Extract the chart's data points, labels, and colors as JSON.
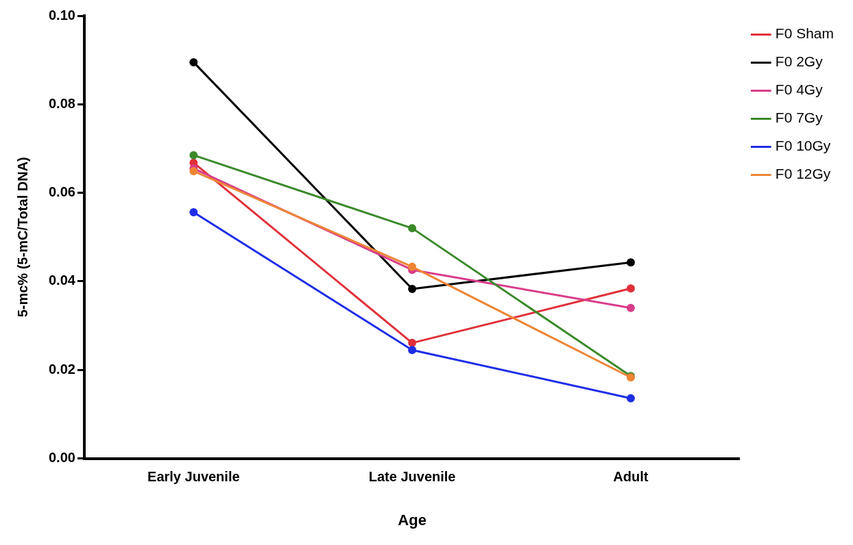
{
  "chart_data": {
    "type": "line",
    "xlabel": "Age",
    "ylabel": "5-mc% (5-mC/Total DNA)",
    "categories": [
      "Early Juvenile",
      "Late Juvenile",
      "Adult"
    ],
    "series": [
      {
        "name": "F0 Sham",
        "color": "#e0303a",
        "values": [
          0.0668,
          0.0261,
          0.0384
        ]
      },
      {
        "name": "F0 2Gy",
        "color": "#000000",
        "values": [
          0.0895,
          0.0383,
          0.0443
        ]
      },
      {
        "name": "F0 4Gy",
        "color": "#d93d8a",
        "values": [
          0.0655,
          0.0426,
          0.034
        ]
      },
      {
        "name": "F0 7Gy",
        "color": "#3a8a2a",
        "values": [
          0.0685,
          0.052,
          0.0186
        ]
      },
      {
        "name": "F0 10Gy",
        "color": "#1f2ee6",
        "values": [
          0.0556,
          0.0245,
          0.0136
        ]
      },
      {
        "name": "F0 12Gy",
        "color": "#ee8535",
        "values": [
          0.0649,
          0.0433,
          0.0183
        ]
      }
    ],
    "ylim": [
      0,
      0.1
    ],
    "yticks": [
      {
        "value": 0,
        "label": "0.00"
      },
      0.02,
      0.04,
      0.06,
      0.08,
      {
        "value": 0.1,
        "label": "0.10"
      }
    ],
    "grid": false,
    "legend": "top right",
    "marker": "circle",
    "line_style": "solid"
  }
}
